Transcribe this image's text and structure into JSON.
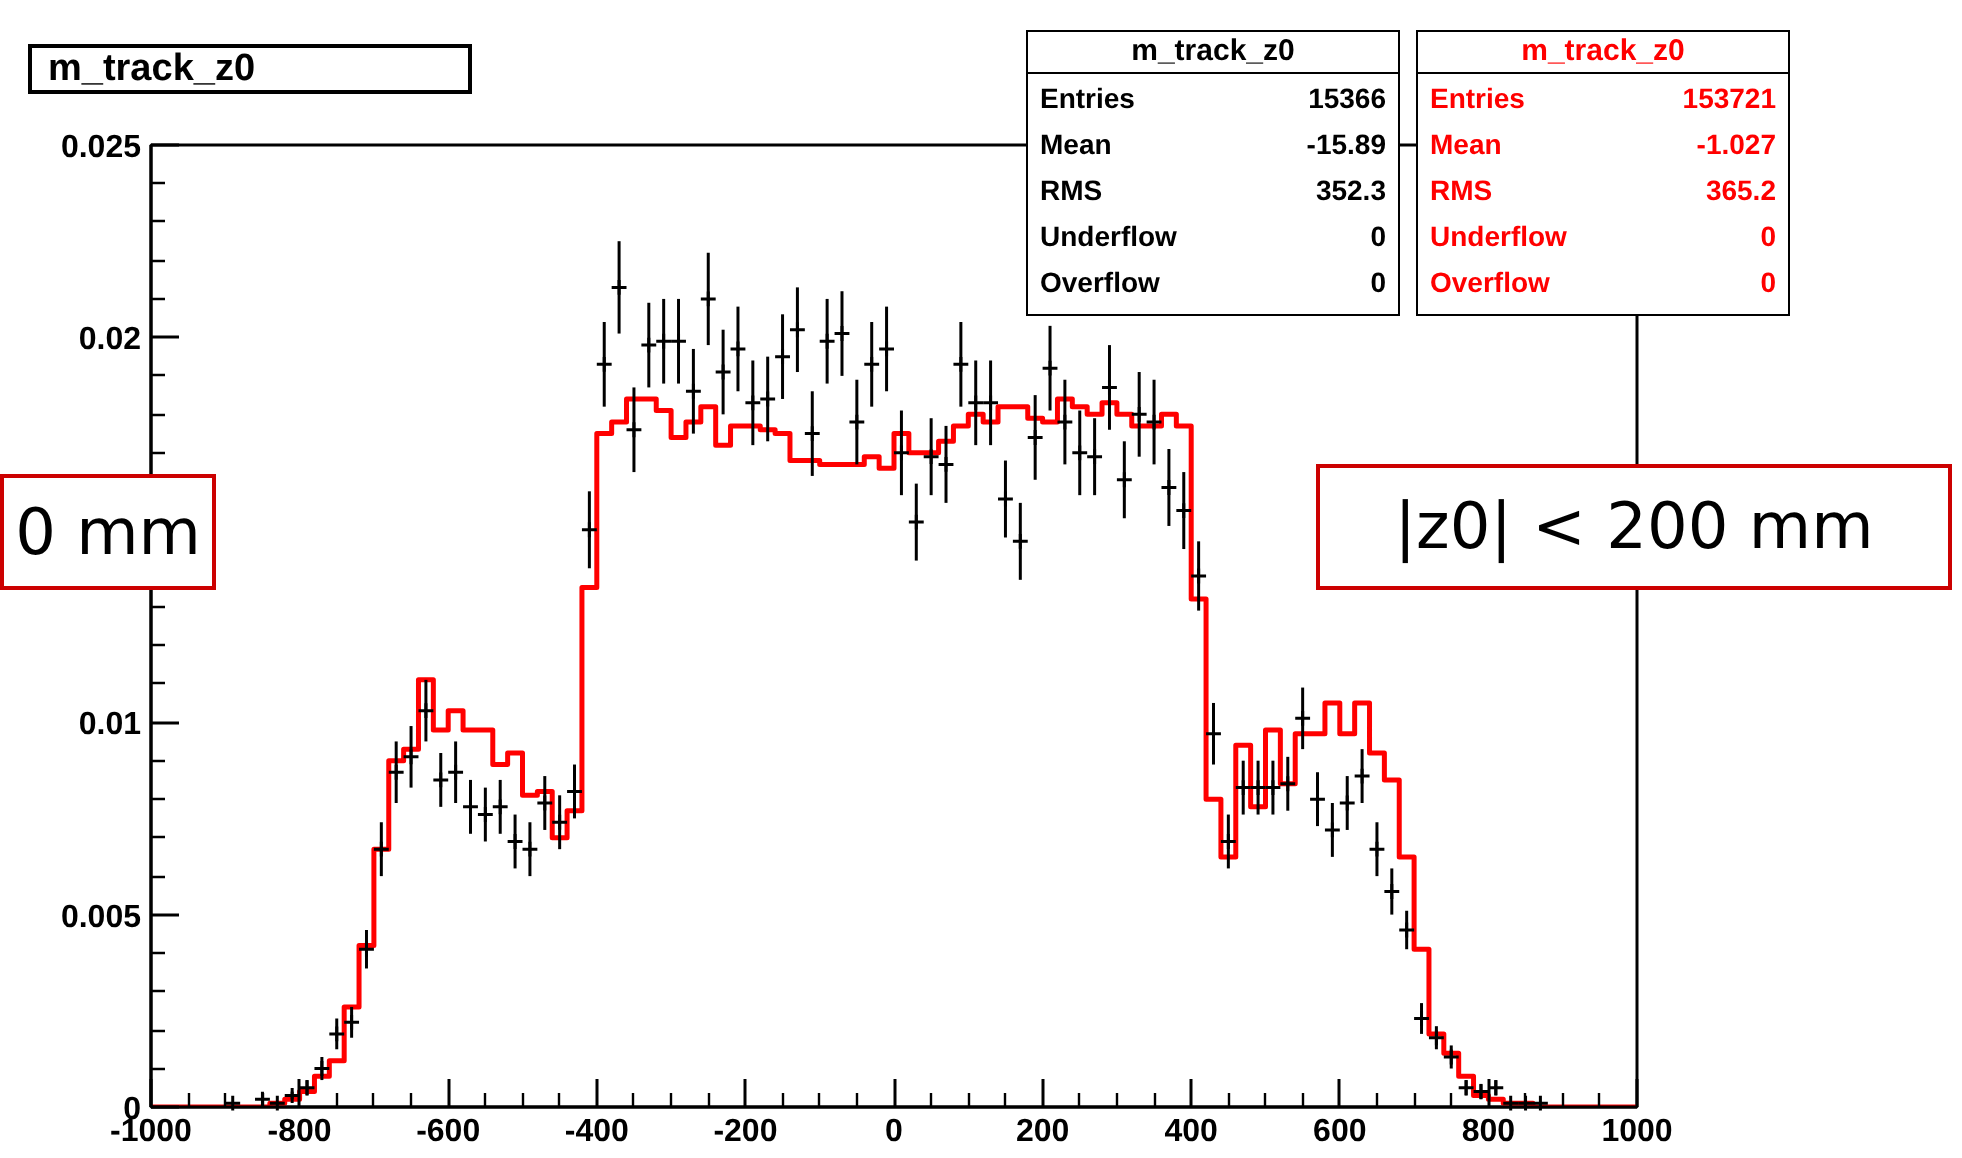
{
  "chart_data": {
    "type": "histogram",
    "title": "m_track_z0",
    "bins": [
      -1000,
      -980,
      -960,
      -940,
      -920,
      -900,
      -880,
      -860,
      -840,
      -820,
      -800,
      -780,
      -760,
      -740,
      -720,
      -700,
      -680,
      -660,
      -640,
      -620,
      -600,
      -580,
      -560,
      -540,
      -520,
      -500,
      -480,
      -460,
      -440,
      -420,
      -400,
      -380,
      -360,
      -340,
      -320,
      -300,
      -280,
      -260,
      -240,
      -220,
      -200,
      -180,
      -160,
      -140,
      -120,
      -100,
      -80,
      -60,
      -40,
      -20,
      0,
      20,
      40,
      60,
      80,
      100,
      120,
      140,
      160,
      180,
      200,
      220,
      240,
      260,
      280,
      300,
      320,
      340,
      360,
      380,
      400,
      420,
      440,
      460,
      480,
      500,
      520,
      540,
      560,
      580,
      600,
      620,
      640,
      660,
      680,
      700,
      720,
      740,
      760,
      780,
      800,
      820,
      840,
      860,
      880,
      900,
      920,
      940,
      960,
      980,
      1000
    ],
    "series": [
      {
        "type": "scatter",
        "color": "#000000",
        "x": [
          -890,
          -870,
          -850,
          -830,
          -810,
          -790,
          -770,
          -750,
          -730,
          -710,
          -690,
          -670,
          -650,
          -630,
          -610,
          -590,
          -570,
          -550,
          -530,
          -510,
          -490,
          -470,
          -450,
          -430,
          -410,
          -390,
          -370,
          -350,
          -330,
          -310,
          -290,
          -270,
          -250,
          -230,
          -210,
          -190,
          -170,
          -150,
          -130,
          -110,
          -90,
          -70,
          -50,
          -30,
          -10,
          10,
          30,
          50,
          70,
          90,
          110,
          130,
          150,
          170,
          190,
          210,
          230,
          250,
          270,
          290,
          310,
          330,
          350,
          370,
          390,
          410,
          430,
          450,
          470,
          490,
          510,
          530,
          550,
          570,
          590,
          610,
          630,
          650,
          670,
          690,
          710,
          730,
          750,
          770,
          790,
          810,
          830,
          850,
          870
        ],
        "values": [
          0.0001,
          null,
          0.0002,
          0.0001,
          0.0003,
          0.0005,
          0.001,
          0.0019,
          0.0022,
          0.0041,
          0.0067,
          0.0087,
          0.0091,
          0.0103,
          0.0085,
          0.0087,
          0.0078,
          0.0076,
          0.0078,
          0.0069,
          0.0067,
          0.0079,
          0.0074,
          0.0082,
          0.015,
          0.0193,
          0.0213,
          0.0176,
          0.0198,
          0.0199,
          0.0199,
          0.0186,
          0.021,
          0.0191,
          0.0197,
          0.0183,
          0.0184,
          0.0195,
          0.0202,
          0.0175,
          0.0199,
          0.0201,
          0.0178,
          0.0193,
          0.0197,
          0.017,
          0.0152,
          0.0169,
          0.0167,
          0.0193,
          0.0183,
          0.0183,
          0.0158,
          0.0147,
          0.0174,
          0.0192,
          0.0178,
          0.017,
          0.0169,
          0.0187,
          0.0163,
          0.018,
          0.0178,
          0.0161,
          0.0155,
          0.0138,
          0.0097,
          0.0069,
          0.0083,
          0.0083,
          0.0083,
          0.0084,
          0.0101,
          0.008,
          0.0072,
          0.0079,
          0.0086,
          0.0067,
          0.0056,
          0.0046,
          0.0023,
          0.0018,
          0.0013,
          0.0005,
          0.0004,
          0.0005,
          0.0001,
          0.0001,
          0.0001
        ],
        "errors": [
          null,
          null,
          null,
          null,
          0.0001,
          0.0002,
          0.0003,
          0.0004,
          0.0004,
          0.0005,
          0.0007,
          0.0008,
          0.0008,
          0.0008,
          0.0007,
          0.0008,
          0.0007,
          0.0007,
          0.0007,
          0.0007,
          0.0007,
          0.0007,
          0.0007,
          0.0007,
          0.001,
          0.0011,
          0.0012,
          0.0011,
          0.0011,
          0.0011,
          0.0011,
          0.0011,
          0.0012,
          0.0011,
          0.0011,
          0.0011,
          0.0011,
          0.0011,
          0.0011,
          0.0011,
          0.0011,
          0.0011,
          0.0011,
          0.0011,
          0.0011,
          0.0011,
          0.001,
          0.001,
          0.001,
          0.0011,
          0.0011,
          0.0011,
          0.001,
          0.001,
          0.0011,
          0.0011,
          0.0011,
          0.0011,
          0.001,
          0.0011,
          0.001,
          0.0011,
          0.0011,
          0.001,
          0.001,
          0.0009,
          0.0008,
          0.0007,
          0.0007,
          0.0007,
          0.0007,
          0.0007,
          0.0008,
          0.0007,
          0.0007,
          0.0007,
          0.0007,
          0.0007,
          0.0006,
          0.0005,
          0.0004,
          0.0003,
          0.0003,
          0.0002,
          0.0002,
          0.0002,
          null,
          null,
          null
        ]
      },
      {
        "color": "#ff0000",
        "values": [
          0,
          0,
          0,
          0,
          0,
          0,
          0,
          0,
          0.0001,
          0.0002,
          0.0004,
          0.0008,
          0.0012,
          0.0026,
          0.0042,
          0.0067,
          0.009,
          0.0093,
          0.0111,
          0.0098,
          0.0103,
          0.0098,
          0.0098,
          0.0089,
          0.0092,
          0.0081,
          0.0082,
          0.007,
          0.0077,
          0.0135,
          0.0175,
          0.0178,
          0.0184,
          0.0184,
          0.0181,
          0.0174,
          0.0178,
          0.0182,
          0.0172,
          0.0177,
          0.0177,
          0.0176,
          0.0175,
          0.0168,
          0.0168,
          0.0167,
          0.0167,
          0.0167,
          0.0169,
          0.0166,
          0.0175,
          0.017,
          0.017,
          0.0173,
          0.0177,
          0.018,
          0.0178,
          0.0182,
          0.0182,
          0.0179,
          0.0178,
          0.0184,
          0.0182,
          0.018,
          0.0183,
          0.018,
          0.0177,
          0.0177,
          0.018,
          0.0177,
          0.0132,
          0.008,
          0.0065,
          0.0094,
          0.0078,
          0.0098,
          0.0084,
          0.0097,
          0.0097,
          0.0105,
          0.0097,
          0.0105,
          0.0092,
          0.0085,
          0.0065,
          0.0041,
          0.0019,
          0.0014,
          0.0008,
          0.0003,
          0.0002,
          0.0001,
          0.0001,
          0,
          0,
          0,
          0,
          0,
          0,
          0
        ]
      }
    ],
    "xlim": [
      -1000,
      1000
    ],
    "ylim": [
      0,
      0.025
    ],
    "xticks": [
      -1000,
      -800,
      -600,
      -400,
      -200,
      0,
      200,
      400,
      600,
      800,
      1000
    ],
    "yticks": [
      0,
      0.005,
      0.01,
      {
        "value": 0.015,
        "label": null
      },
      0.02,
      0.025
    ],
    "annotations": [
      "m_track_z0",
      "Entries",
      "15366",
      "Mean",
      "-15.89",
      "RMS",
      "352.3",
      "Underflow",
      "0",
      "Overflow",
      "0",
      "m_track_z0",
      "Entries",
      "153721",
      "Mean",
      "-1.027",
      "RMS",
      "365.2",
      "Underflow",
      "0",
      "Overflow",
      "0",
      "|z0| < 200 mm",
      "0 mm"
    ]
  }
}
